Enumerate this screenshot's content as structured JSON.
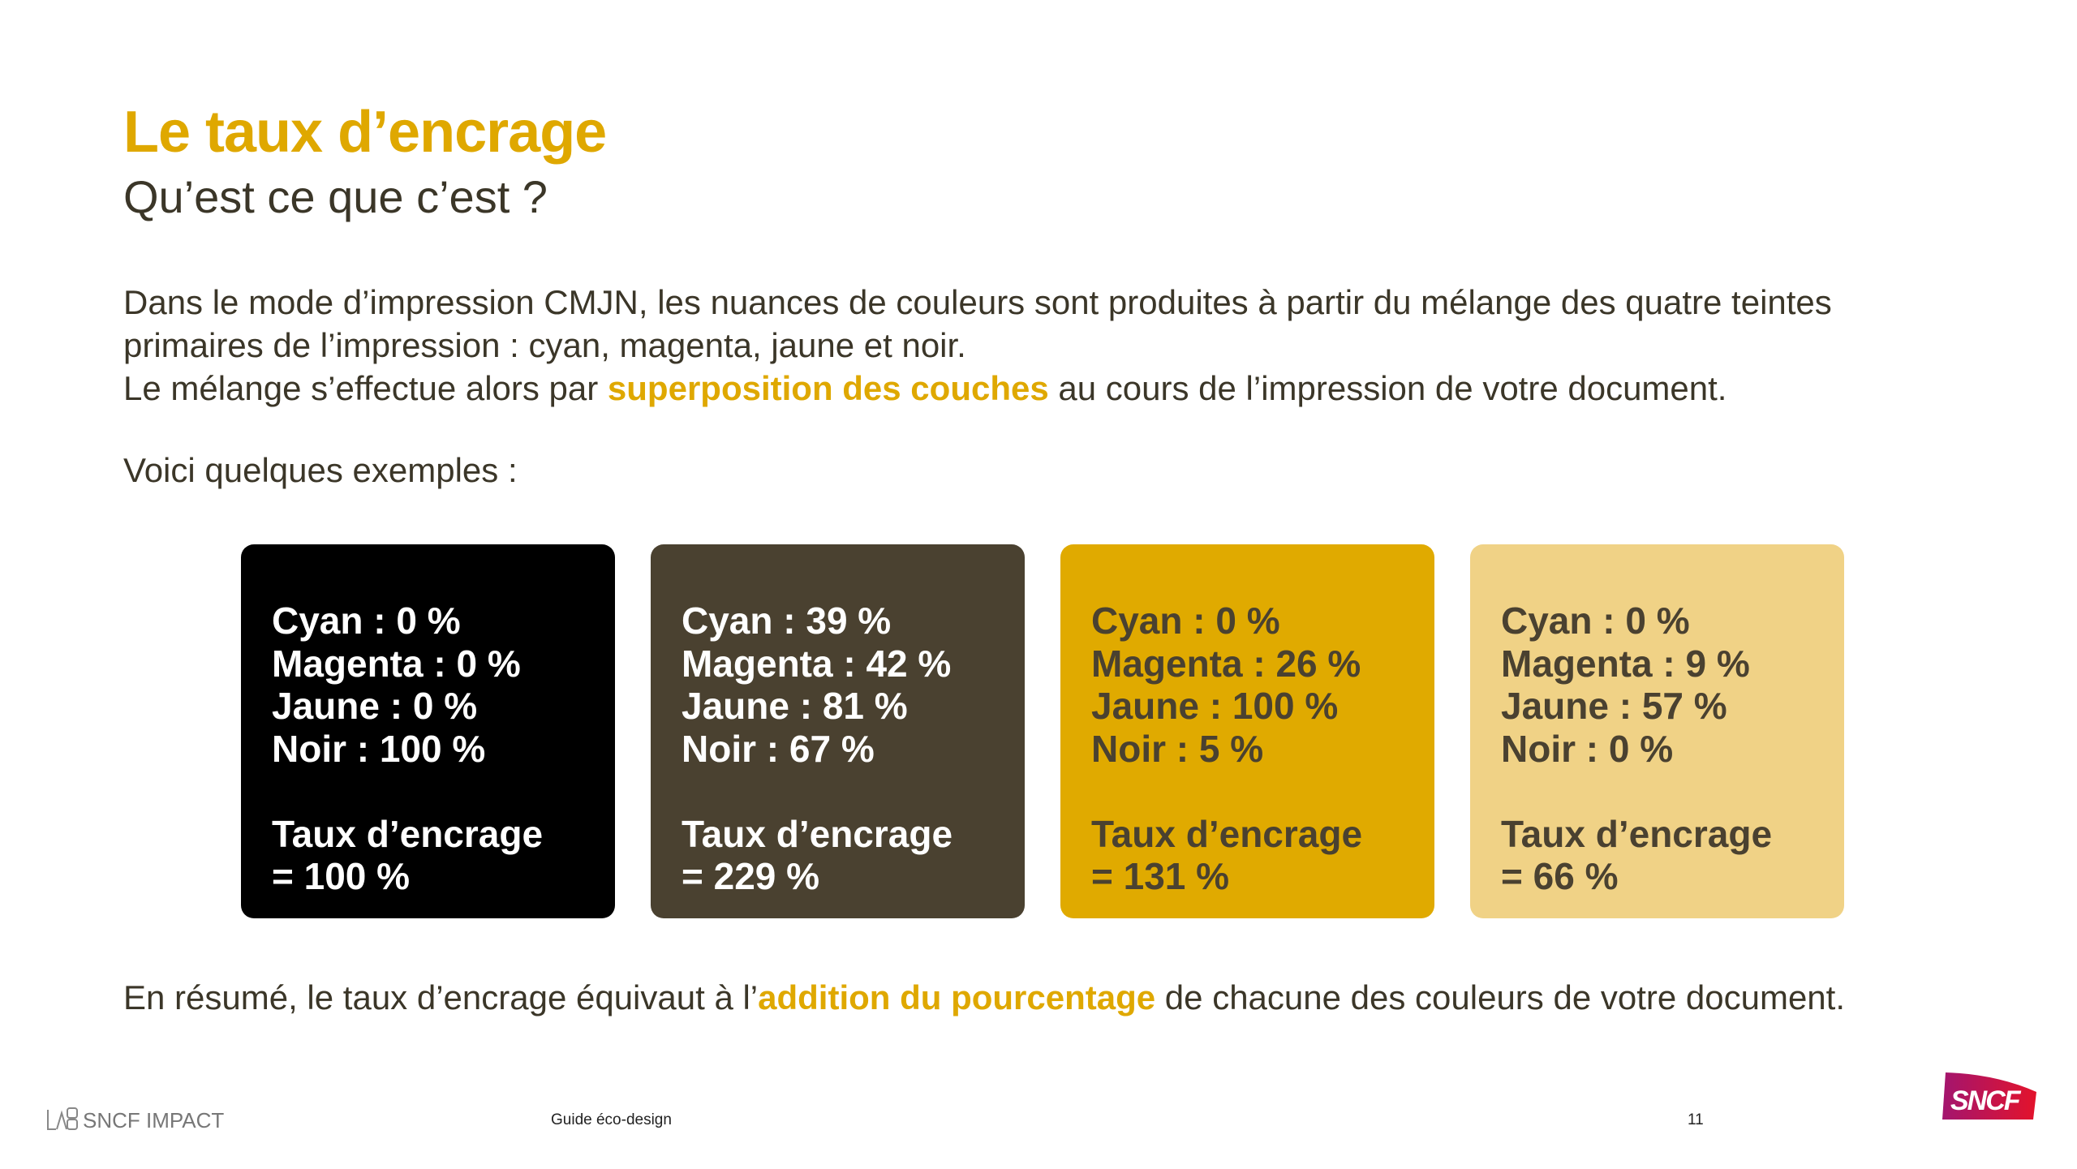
{
  "header": {
    "title": "Le taux d’encrage",
    "subtitle": "Qu’est ce que c’est ?"
  },
  "body": {
    "line1": "Dans le mode d’impression CMJN, les nuances de couleurs sont produites à partir du mélange des quatre teintes",
    "line2": "primaires de l’impression : cyan, magenta, jaune et noir.",
    "line3_pre": "Le mélange s’effectue alors par ",
    "line3_highlight": "superposition des couches",
    "line3_post": " au cours de l’impression de votre document.",
    "intro": "Voici quelques exemples :"
  },
  "cards": [
    {
      "bg": "#000000",
      "fg": "#ffffff",
      "cyan": "Cyan : 0 %",
      "magenta": "Magenta : 0 %",
      "jaune": "Jaune : 0 %",
      "noir": "Noir : 100 %",
      "taux_label": "Taux d’encrage",
      "taux_value": "= 100 %"
    },
    {
      "bg": "#4a4130",
      "fg": "#ffffff",
      "cyan": "Cyan : 39 %",
      "magenta": "Magenta : 42 %",
      "jaune": "Jaune : 81 %",
      "noir": "Noir : 67 %",
      "taux_label": "Taux d’encrage",
      "taux_value": "= 229 %"
    },
    {
      "bg": "#e0aa00",
      "fg": "#4a4130",
      "cyan": "Cyan : 0 %",
      "magenta": "Magenta : 26 %",
      "jaune": "Jaune : 100 %",
      "noir": "Noir : 5 %",
      "taux_label": "Taux d’encrage",
      "taux_value": "= 131 %"
    },
    {
      "bg": "#f0d286",
      "fg": "#4a4130",
      "cyan": "Cyan : 0 %",
      "magenta": "Magenta : 9 %",
      "jaune": "Jaune : 57 %",
      "noir": "Noir : 0 %",
      "taux_label": "Taux d’encrage",
      "taux_value": "= 66 %"
    }
  ],
  "summary": {
    "pre": "En résumé, le taux d’encrage équivaut à l’",
    "highlight": "addition du pourcentage",
    "post": " de chacune des couleurs de votre document."
  },
  "footer": {
    "lab": "SNCF IMPACT",
    "lab_icon": "lab-logo",
    "guide": "Guide éco-design",
    "page": "11",
    "logo": "SNCF"
  },
  "colors": {
    "accent": "#dfa800",
    "text": "#3b3628"
  }
}
